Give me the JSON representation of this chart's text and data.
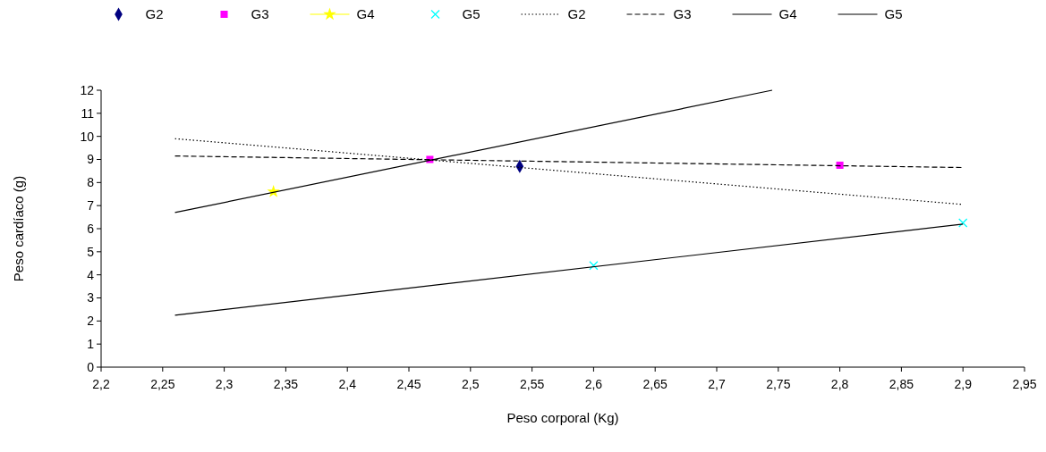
{
  "chart_data": {
    "type": "scatter",
    "xlabel": "Peso corporal (Kg)",
    "ylabel": "Peso cardíaco (g)",
    "xlim": [
      2.2,
      2.95
    ],
    "xticks": [
      {
        "value": 2.2,
        "label": "2,2"
      },
      {
        "value": 2.25,
        "label": "2,25"
      },
      {
        "value": 2.3,
        "label": "2,3"
      },
      {
        "value": 2.35,
        "label": "2,35"
      },
      {
        "value": 2.4,
        "label": "2,4"
      },
      {
        "value": 2.45,
        "label": "2,45"
      },
      {
        "value": 2.5,
        "label": "2,5"
      },
      {
        "value": 2.55,
        "label": "2,55"
      },
      {
        "value": 2.6,
        "label": "2,6"
      },
      {
        "value": 2.65,
        "label": "2,65"
      },
      {
        "value": 2.7,
        "label": "2,7"
      },
      {
        "value": 2.75,
        "label": "2,75"
      },
      {
        "value": 2.8,
        "label": "2,8"
      },
      {
        "value": 2.85,
        "label": "2,85"
      },
      {
        "value": 2.9,
        "label": "2,9"
      },
      {
        "value": 2.95,
        "label": "2,95"
      }
    ],
    "ylim": [
      0,
      12
    ],
    "yticks": [
      0,
      1,
      2,
      3,
      4,
      5,
      6,
      7,
      8,
      9,
      10,
      11,
      12
    ],
    "grid": false,
    "legend": "top",
    "series": [
      {
        "name": "G2",
        "marker": "diamond",
        "color": "#000080",
        "x": [
          2.54
        ],
        "values": [
          8.7
        ]
      },
      {
        "name": "G3",
        "marker": "square",
        "color": "#ff00ff",
        "x": [
          2.467,
          2.8
        ],
        "values": [
          9.0,
          8.75
        ]
      },
      {
        "name": "G4",
        "type": "line",
        "marker": "star",
        "color": "#ffff00",
        "x": [
          2.34
        ],
        "values": [
          7.6
        ]
      },
      {
        "name": "G5",
        "marker": "cross",
        "color": "#00ffff",
        "x": [
          2.6,
          2.9
        ],
        "values": [
          4.4,
          6.25
        ]
      },
      {
        "name": "G2",
        "type": "line",
        "marker": "none",
        "line_style": "dotted",
        "color": "#000000",
        "x": [
          2.26,
          2.9
        ],
        "values": [
          9.9,
          7.05
        ]
      },
      {
        "name": "G3",
        "type": "line",
        "marker": "none",
        "line_style": "dashed",
        "color": "#000000",
        "x": [
          2.26,
          2.9
        ],
        "values": [
          9.15,
          8.65
        ]
      },
      {
        "name": "G4",
        "type": "line",
        "marker": "none",
        "line_style": "solid",
        "color": "#000000",
        "x": [
          2.26,
          2.745
        ],
        "values": [
          6.7,
          12
        ]
      },
      {
        "name": "G5",
        "type": "line",
        "marker": "none",
        "line_style": "solid",
        "color": "#000000",
        "x": [
          2.26,
          2.9
        ],
        "values": [
          2.25,
          6.2
        ]
      }
    ]
  }
}
